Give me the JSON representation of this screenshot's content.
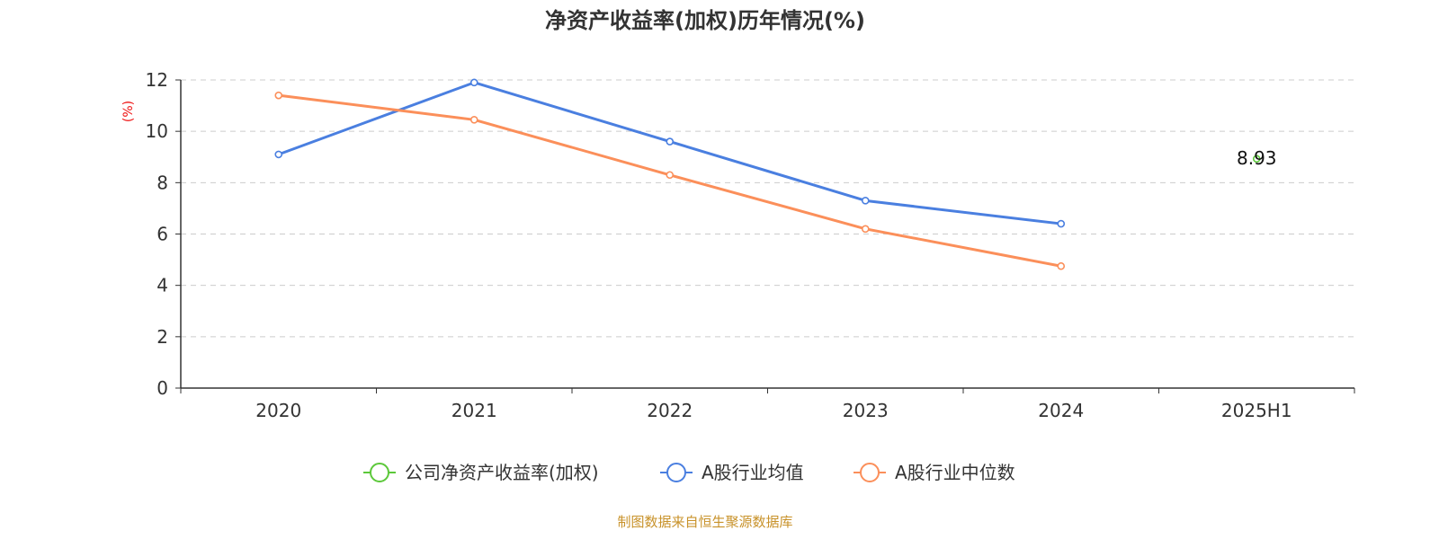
{
  "chart_data": {
    "type": "line",
    "title": "净资产收益率(加权)历年情况(%)",
    "ylabel": "(%)",
    "xlabel": "",
    "ylim": [
      0,
      12
    ],
    "yticks": [
      0,
      2,
      4,
      6,
      8,
      10,
      12
    ],
    "grid": true,
    "categories": [
      "2020",
      "2021",
      "2022",
      "2023",
      "2024",
      "2025H1"
    ],
    "series": [
      {
        "name": "公司净资产收益率(加权)",
        "color": "#5cc83a",
        "values": [
          null,
          null,
          null,
          null,
          null,
          8.93
        ],
        "show_labels": true
      },
      {
        "name": "A股行业均值",
        "color": "#4a7fe0",
        "values": [
          9.1,
          11.9,
          9.6,
          7.3,
          6.4,
          null
        ],
        "show_labels": false
      },
      {
        "name": "A股行业中位数",
        "color": "#fb8f5a",
        "values": [
          11.4,
          10.45,
          8.3,
          6.2,
          4.75,
          null
        ],
        "show_labels": false
      }
    ],
    "legend_position": "bottom"
  },
  "source_text": "制图数据来自恒生聚源数据库",
  "colors": {
    "axis": "#333333",
    "grid": "#cccccc",
    "unit_label": "#ee1111",
    "source": "#c8922a"
  }
}
